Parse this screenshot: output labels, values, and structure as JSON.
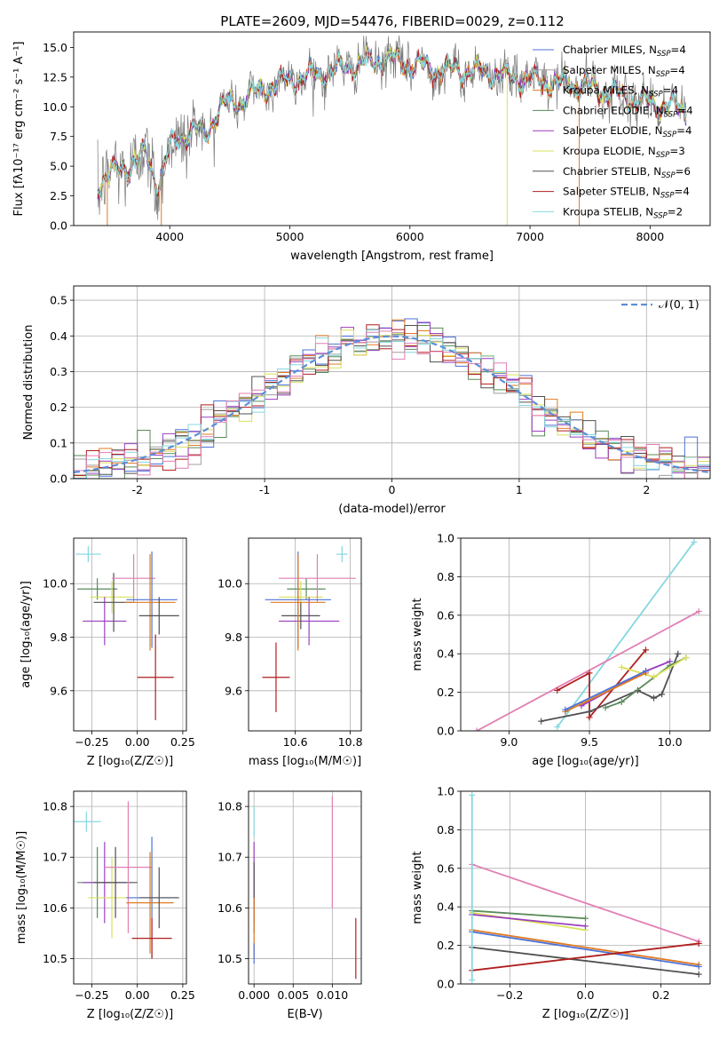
{
  "figure_title": "PLATE=2609, MJD=54476, FIBERID=0029, z=0.112",
  "colors": {
    "chabrier_miles": "#4c72d8",
    "salpeter_miles": "#9f9f9f",
    "kroupa_miles": "#e07b23",
    "chabrier_elodie": "#5a8a5a",
    "salpeter_elodie": "#9b3fbf",
    "kroupa_elodie": "#d9e05a",
    "chabrier_stelib": "#505050",
    "salpeter_stelib": "#b01f1f",
    "kroupa_stelib": "#84d8e0",
    "pink": "#e17fb4",
    "normal_curve": "#5b8fd9"
  },
  "chart_data": [
    {
      "id": "spectrum",
      "type": "line",
      "title": "PLATE=2609, MJD=54476, FIBERID=0029, z=0.112",
      "xlabel": "wavelength [Angstrom, rest frame]",
      "ylabel": "Flux [fλ10⁻¹⁷ erg cm⁻² s⁻¹ A⁻¹]",
      "xlim": [
        3200,
        8500
      ],
      "ylim": [
        0,
        16.3
      ],
      "xticks": [
        4000,
        5000,
        6000,
        7000,
        8000
      ],
      "yticks": [
        0.0,
        2.5,
        5.0,
        7.5,
        10.0,
        12.5,
        15.0
      ],
      "legend_position": "upper-right",
      "legend": [
        {
          "label": "Chabrier MILES, N",
          "sub": "SSP",
          "tail": "=4",
          "color": "#4c72d8"
        },
        {
          "label": "Salpeter MILES, N",
          "sub": "SSP",
          "tail": "=4",
          "color": "#9f9f9f"
        },
        {
          "label": "Kroupa MILES, N",
          "sub": "SSP",
          "tail": "=4",
          "color": "#e07b23"
        },
        {
          "label": "Chabrier ELODIE, N",
          "sub": "SSP",
          "tail": "=4",
          "color": "#5a8a5a"
        },
        {
          "label": "Salpeter ELODIE, N",
          "sub": "SSP",
          "tail": "=4",
          "color": "#9b3fbf"
        },
        {
          "label": "Kroupa ELODIE, N",
          "sub": "SSP",
          "tail": "=3",
          "color": "#d9e05a"
        },
        {
          "label": "Chabrier STELIB, N",
          "sub": "SSP",
          "tail": "=6",
          "color": "#505050"
        },
        {
          "label": "Salpeter STELIB, N",
          "sub": "SSP",
          "tail": "=4",
          "color": "#b01f1f"
        },
        {
          "label": "Kroupa STELIB, N",
          "sub": "SSP",
          "tail": "=2",
          "color": "#84d8e0"
        }
      ],
      "data_envelope": {
        "x": [
          3400,
          3500,
          3600,
          3700,
          3800,
          3900,
          4000,
          4100,
          4200,
          4300,
          4400,
          4600,
          4800,
          5000,
          5200,
          5400,
          5600,
          5800,
          6000,
          6200,
          6400,
          6600,
          6800,
          7000,
          7200,
          7400,
          7600,
          7800,
          8000,
          8200,
          8300
        ],
        "y": [
          3.5,
          4.5,
          4.5,
          5.5,
          6.0,
          3.5,
          6.5,
          7.5,
          8.2,
          7.6,
          9.8,
          10.6,
          11.6,
          12.3,
          12.7,
          13.2,
          13.7,
          14.0,
          13.6,
          13.2,
          13.0,
          13.0,
          12.6,
          12.3,
          12.0,
          11.8,
          11.4,
          10.8,
          10.3,
          10.0,
          9.8
        ]
      }
    },
    {
      "id": "residual-histogram",
      "type": "bar",
      "xlabel": "(data-model)/error",
      "ylabel": "Normed distribution",
      "xlim": [
        -2.5,
        2.5
      ],
      "ylim": [
        0,
        0.54
      ],
      "xticks": [
        -2,
        -1,
        0,
        1,
        2
      ],
      "yticks": [
        0.0,
        0.1,
        0.2,
        0.3,
        0.4,
        0.5
      ],
      "bin_width": 0.1,
      "legend_position": "upper-right",
      "legend": [
        {
          "label": "𝒩(0, 1)",
          "color": "#5b8fd9",
          "dashed": true
        }
      ],
      "normal_curve": {
        "mean": 0,
        "sigma": 1
      }
    },
    {
      "id": "age-vs-z",
      "type": "scatter",
      "xlabel": "Z [log₁₀(Z/Z☉)]",
      "ylabel": "age  [log₁₀(age/yr)]",
      "xlim": [
        -0.35,
        0.27
      ],
      "ylim": [
        9.45,
        10.17
      ],
      "xticks": [
        -0.25,
        0.0,
        0.25
      ],
      "xticklabels": [
        "−0.25",
        "0.00",
        "0.25"
      ],
      "yticks": [
        9.6,
        9.8,
        10.0
      ],
      "points": [
        {
          "x": -0.27,
          "y": 10.11,
          "xerr": 0.07,
          "yerr": 0.03,
          "color": "#84d8e0"
        },
        {
          "x": -0.22,
          "y": 9.98,
          "xerr": 0.11,
          "yerr": 0.04,
          "color": "#5a8a5a"
        },
        {
          "x": -0.14,
          "y": 9.95,
          "xerr": 0.12,
          "yerr": 0.06,
          "color": "#d9e05a"
        },
        {
          "x": -0.18,
          "y": 9.86,
          "xerr": 0.12,
          "yerr": 0.09,
          "color": "#9b3fbf"
        },
        {
          "x": -0.13,
          "y": 9.93,
          "xerr": 0.11,
          "yerr": 0.11,
          "color": "#505050"
        },
        {
          "x": -0.02,
          "y": 10.02,
          "xerr": 0.12,
          "yerr": 0.09,
          "color": "#e17fb4"
        },
        {
          "x": 0.08,
          "y": 9.94,
          "xerr": 0.14,
          "yerr": 0.18,
          "color": "#4c72d8"
        },
        {
          "x": 0.07,
          "y": 9.93,
          "xerr": 0.14,
          "yerr": 0.18,
          "color": "#e07b23"
        },
        {
          "x": 0.12,
          "y": 9.88,
          "xerr": 0.11,
          "yerr": 0.07,
          "color": "#505050"
        },
        {
          "x": 0.1,
          "y": 9.65,
          "xerr": 0.1,
          "yerr": 0.16,
          "color": "#b01f1f"
        }
      ]
    },
    {
      "id": "age-vs-mass",
      "type": "scatter",
      "xlabel": "mass [log₁₀(M/M☉)]",
      "ylabel": "",
      "xlim": [
        10.43,
        10.84
      ],
      "ylim": [
        9.45,
        10.17
      ],
      "xticks": [
        10.6,
        10.8
      ],
      "yticks": [
        9.6,
        9.8,
        10.0
      ],
      "points": [
        {
          "x": 10.77,
          "y": 10.11,
          "xerr": 0.02,
          "yerr": 0.03,
          "color": "#84d8e0"
        },
        {
          "x": 10.64,
          "y": 9.98,
          "xerr": 0.07,
          "yerr": 0.04,
          "color": "#5a8a5a"
        },
        {
          "x": 10.62,
          "y": 9.95,
          "xerr": 0.08,
          "yerr": 0.06,
          "color": "#d9e05a"
        },
        {
          "x": 10.65,
          "y": 9.86,
          "xerr": 0.11,
          "yerr": 0.09,
          "color": "#9b3fbf"
        },
        {
          "x": 10.62,
          "y": 9.88,
          "xerr": 0.07,
          "yerr": 0.05,
          "color": "#505050"
        },
        {
          "x": 10.68,
          "y": 10.02,
          "xerr": 0.14,
          "yerr": 0.09,
          "color": "#e17fb4"
        },
        {
          "x": 10.61,
          "y": 9.94,
          "xerr": 0.12,
          "yerr": 0.18,
          "color": "#4c72d8"
        },
        {
          "x": 10.61,
          "y": 9.93,
          "xerr": 0.1,
          "yerr": 0.18,
          "color": "#e07b23"
        },
        {
          "x": 10.53,
          "y": 9.65,
          "xerr": 0.05,
          "yerr": 0.13,
          "color": "#b01f1f"
        }
      ]
    },
    {
      "id": "mass-weight-vs-age",
      "type": "line",
      "xlabel": "age  [log₁₀(age/yr)]",
      "ylabel": "mass weight",
      "xlim": [
        8.7,
        10.25
      ],
      "ylim": [
        0,
        1.0
      ],
      "xticks": [
        9.0,
        9.5,
        10.0
      ],
      "yticks": [
        0.0,
        0.2,
        0.4,
        0.6,
        0.8,
        1.0
      ],
      "series": [
        {
          "color": "#84d8e0",
          "x": [
            9.3,
            10.15
          ],
          "y": [
            0.02,
            0.98
          ]
        },
        {
          "color": "#e17fb4",
          "x": [
            8.8,
            10.18
          ],
          "y": [
            0.0,
            0.62
          ]
        },
        {
          "color": "#b01f1f",
          "x": [
            9.3,
            9.5,
            9.5,
            9.85
          ],
          "y": [
            0.21,
            0.3,
            0.07,
            0.42
          ]
        },
        {
          "color": "#9b3fbf",
          "x": [
            9.45,
            9.85,
            10.0
          ],
          "y": [
            0.13,
            0.31,
            0.36
          ]
        },
        {
          "color": "#505050",
          "x": [
            9.2,
            9.5,
            9.8,
            9.9,
            9.95,
            10.05
          ],
          "y": [
            0.05,
            0.1,
            0.21,
            0.17,
            0.19,
            0.4
          ]
        },
        {
          "color": "#5a8a5a",
          "x": [
            9.6,
            9.7,
            10.0,
            10.1
          ],
          "y": [
            0.12,
            0.15,
            0.34,
            0.38
          ]
        },
        {
          "color": "#d9e05a",
          "x": [
            9.7,
            9.9,
            10.1
          ],
          "y": [
            0.33,
            0.28,
            0.38
          ]
        },
        {
          "color": "#e07b23",
          "x": [
            9.35,
            9.85
          ],
          "y": [
            0.1,
            0.3
          ]
        },
        {
          "color": "#4c72d8",
          "x": [
            9.35,
            9.85
          ],
          "y": [
            0.11,
            0.31
          ]
        }
      ]
    },
    {
      "id": "mass-vs-z",
      "type": "scatter",
      "xlabel": "Z [log₁₀(Z/Z☉)]",
      "ylabel": "mass [log₁₀(M/M☉)]",
      "xlim": [
        -0.35,
        0.27
      ],
      "ylim": [
        10.45,
        10.83
      ],
      "xticks": [
        -0.25,
        0.0,
        0.25
      ],
      "xticklabels": [
        "−0.25",
        "0.00",
        "0.25"
      ],
      "yticks": [
        10.5,
        10.6,
        10.7,
        10.8
      ],
      "points": [
        {
          "x": -0.28,
          "y": 10.77,
          "xerr": 0.08,
          "yerr": 0.02,
          "color": "#84d8e0"
        },
        {
          "x": -0.22,
          "y": 10.65,
          "xerr": 0.11,
          "yerr": 0.07,
          "color": "#5a8a5a"
        },
        {
          "x": -0.18,
          "y": 10.65,
          "xerr": 0.12,
          "yerr": 0.08,
          "color": "#9b3fbf"
        },
        {
          "x": -0.14,
          "y": 10.62,
          "xerr": 0.13,
          "yerr": 0.08,
          "color": "#d9e05a"
        },
        {
          "x": -0.12,
          "y": 10.65,
          "xerr": 0.12,
          "yerr": 0.07,
          "color": "#505050"
        },
        {
          "x": -0.05,
          "y": 10.68,
          "xerr": 0.13,
          "yerr": 0.13,
          "color": "#e17fb4"
        },
        {
          "x": 0.08,
          "y": 10.62,
          "xerr": 0.14,
          "yerr": 0.12,
          "color": "#4c72d8"
        },
        {
          "x": 0.07,
          "y": 10.61,
          "xerr": 0.13,
          "yerr": 0.1,
          "color": "#e07b23"
        },
        {
          "x": 0.12,
          "y": 10.62,
          "xerr": 0.11,
          "yerr": 0.06,
          "color": "#505050"
        },
        {
          "x": 0.08,
          "y": 10.54,
          "xerr": 0.11,
          "yerr": 0.04,
          "color": "#b01f1f"
        }
      ]
    },
    {
      "id": "mass-vs-ebv",
      "type": "scatter",
      "xlabel": "E(B-V)",
      "ylabel": "",
      "xlim": [
        -0.0007,
        0.0137
      ],
      "ylim": [
        10.45,
        10.83
      ],
      "xticks": [
        0.0,
        0.005,
        0.01
      ],
      "xticklabels": [
        "0.000",
        "0.005",
        "0.010"
      ],
      "yticks": [
        10.5,
        10.6,
        10.7,
        10.8
      ],
      "points": [
        {
          "x": 0.0,
          "y": 10.77,
          "yerr": 0.03,
          "color": "#84d8e0"
        },
        {
          "x": 0.0,
          "y": 10.65,
          "yerr": 0.08,
          "color": "#9b3fbf"
        },
        {
          "x": 0.0,
          "y": 10.62,
          "yerr": 0.07,
          "color": "#505050"
        },
        {
          "x": 0.0,
          "y": 10.56,
          "yerr": 0.06,
          "color": "#e07b23"
        },
        {
          "x": 0.0,
          "y": 10.51,
          "yerr": 0.02,
          "color": "#4c72d8"
        },
        {
          "x": 0.01,
          "y": 10.71,
          "yerr": 0.11,
          "color": "#e17fb4"
        },
        {
          "x": 0.013,
          "y": 10.52,
          "yerr": 0.06,
          "color": "#b01f1f"
        }
      ]
    },
    {
      "id": "mass-weight-vs-z",
      "type": "line",
      "xlabel": "Z [log₁₀(Z/Z☉)]",
      "ylabel": "mass weight",
      "xlim": [
        -0.33,
        0.33
      ],
      "ylim": [
        0,
        1.0
      ],
      "xticks": [
        -0.2,
        0.0,
        0.2
      ],
      "xticklabels": [
        "−0.2",
        "0.0",
        "0.2"
      ],
      "yticks": [
        0.0,
        0.2,
        0.4,
        0.6,
        0.8,
        1.0
      ],
      "series": [
        {
          "color": "#e17fb4",
          "x": [
            -0.3,
            0.3
          ],
          "y": [
            0.62,
            0.22
          ]
        },
        {
          "color": "#5a8a5a",
          "x": [
            -0.3,
            0.0
          ],
          "y": [
            0.38,
            0.34
          ]
        },
        {
          "color": "#d9e05a",
          "x": [
            -0.3,
            0.0
          ],
          "y": [
            0.37,
            0.28
          ]
        },
        {
          "color": "#9b3fbf",
          "x": [
            -0.3,
            0.0
          ],
          "y": [
            0.36,
            0.3
          ]
        },
        {
          "color": "#e07b23",
          "x": [
            -0.3,
            0.3
          ],
          "y": [
            0.28,
            0.1
          ]
        },
        {
          "color": "#4c72d8",
          "x": [
            -0.3,
            0.3
          ],
          "y": [
            0.27,
            0.09
          ]
        },
        {
          "color": "#505050",
          "x": [
            -0.3,
            0.3
          ],
          "y": [
            0.19,
            0.05
          ]
        },
        {
          "color": "#b01f1f",
          "x": [
            -0.3,
            0.3
          ],
          "y": [
            0.07,
            0.21
          ]
        },
        {
          "color": "#84d8e0",
          "x": [
            -0.3,
            -0.3
          ],
          "y": [
            0.02,
            0.98
          ]
        }
      ]
    }
  ]
}
